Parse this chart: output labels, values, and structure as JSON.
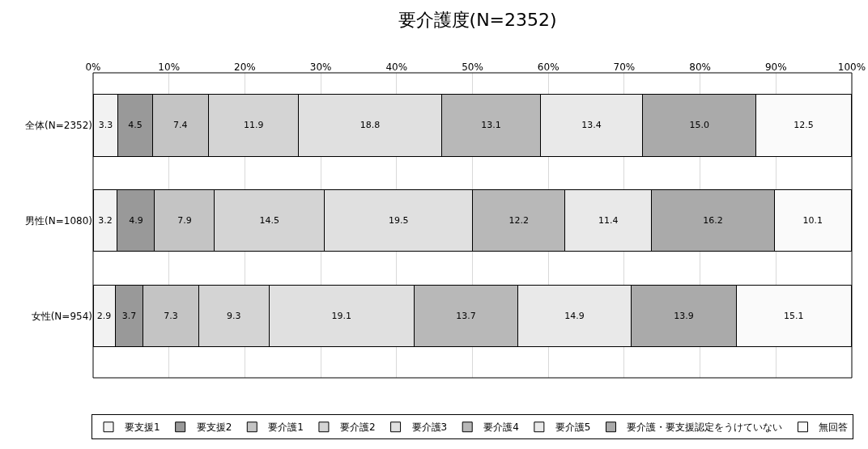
{
  "chart_data": {
    "type": "bar",
    "orientation": "horizontal",
    "stacked": true,
    "title": "要介護度(N=2352)",
    "categories": [
      "全体(N=2352)",
      "男性(N=1080)",
      "女性(N=954)"
    ],
    "series": [
      {
        "name": "要支援1",
        "color": "#f2f2f2",
        "values": [
          3.3,
          3.2,
          2.9
        ],
        "value_labels": [
          "3.3",
          "3.2",
          "2.9"
        ]
      },
      {
        "name": "要支援2",
        "color": "#999999",
        "values": [
          4.5,
          4.9,
          3.7
        ],
        "value_labels": [
          "4.5",
          "4.9",
          "3.7"
        ]
      },
      {
        "name": "要介護1",
        "color": "#c4c4c4",
        "values": [
          7.4,
          7.9,
          7.3
        ],
        "value_labels": [
          "7.4",
          "7.9",
          "7.3"
        ]
      },
      {
        "name": "要介護2",
        "color": "#d4d4d4",
        "values": [
          11.9,
          14.5,
          9.3
        ],
        "value_labels": [
          "11.9",
          "14.5",
          "9.3"
        ]
      },
      {
        "name": "要介護3",
        "color": "#e0e0e0",
        "values": [
          18.8,
          19.5,
          19.1
        ],
        "value_labels": [
          "18.8",
          "19.5",
          "19.1"
        ]
      },
      {
        "name": "要介護4",
        "color": "#b8b8b8",
        "values": [
          13.1,
          12.2,
          13.7
        ],
        "value_labels": [
          "13.1",
          "12.2",
          "13.7"
        ]
      },
      {
        "name": "要介護5",
        "color": "#e9e9e9",
        "values": [
          13.4,
          11.4,
          14.9
        ],
        "value_labels": [
          "13.4",
          "11.4",
          "14.9"
        ]
      },
      {
        "name": "要介護・要支援認定をうけていない",
        "color": "#aaaaaa",
        "values": [
          15.0,
          16.2,
          13.9
        ],
        "value_labels": [
          "15.0",
          "16.2",
          "13.9"
        ]
      },
      {
        "name": "無回答",
        "color": "#fafafa",
        "values": [
          12.5,
          10.1,
          15.1
        ],
        "value_labels": [
          "12.5",
          "10.1",
          "15.1"
        ]
      }
    ],
    "xlim": [
      0,
      100
    ],
    "xticks": [
      {
        "value": 0,
        "label": "0%"
      },
      {
        "value": 10,
        "label": "10%"
      },
      {
        "value": 20,
        "label": "20%"
      },
      {
        "value": 30,
        "label": "30%"
      },
      {
        "value": 40,
        "label": "40%"
      },
      {
        "value": 50,
        "label": "50%"
      },
      {
        "value": 60,
        "label": "60%"
      },
      {
        "value": 70,
        "label": "70%"
      },
      {
        "value": 80,
        "label": "80%"
      },
      {
        "value": 90,
        "label": "90%"
      },
      {
        "value": 100,
        "label": "100%"
      }
    ],
    "grid": "x",
    "legend": "bottom"
  }
}
